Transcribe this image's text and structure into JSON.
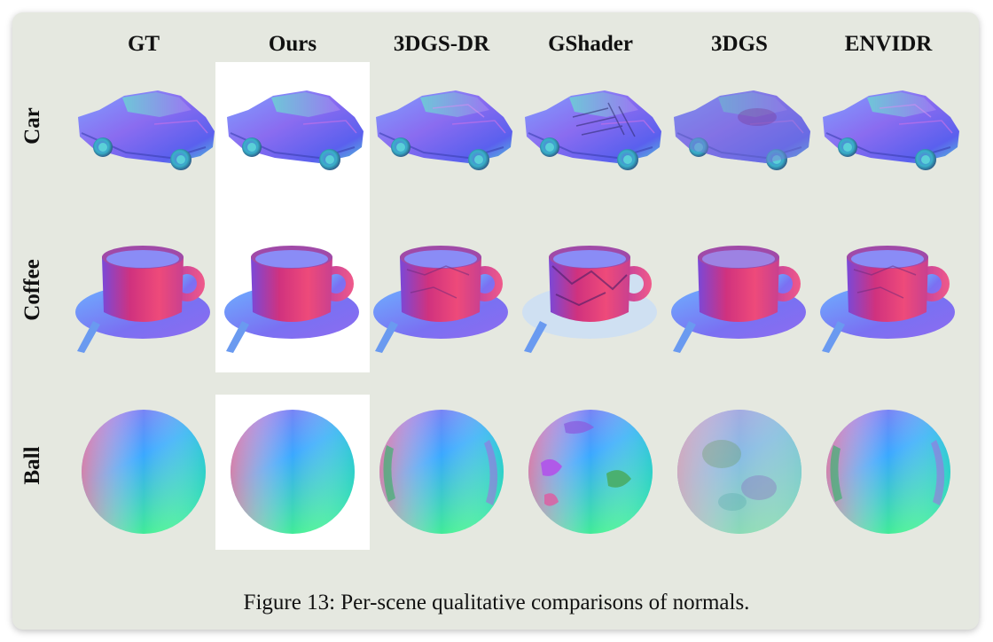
{
  "figure": {
    "columns": [
      "GT",
      "Ours",
      "3DGS-DR",
      "GShader",
      "3DGS",
      "ENVIDR"
    ],
    "rows": [
      "Car",
      "Coffee",
      "Ball"
    ],
    "caption": "Figure 13: Per-scene qualitative comparisons of normals."
  },
  "cell_artifacts": {
    "GT": "none",
    "Ours": "none",
    "3DGS-DR": "light",
    "GShader": "strong",
    "3DGS": "blurry",
    "ENVIDR": "light"
  }
}
